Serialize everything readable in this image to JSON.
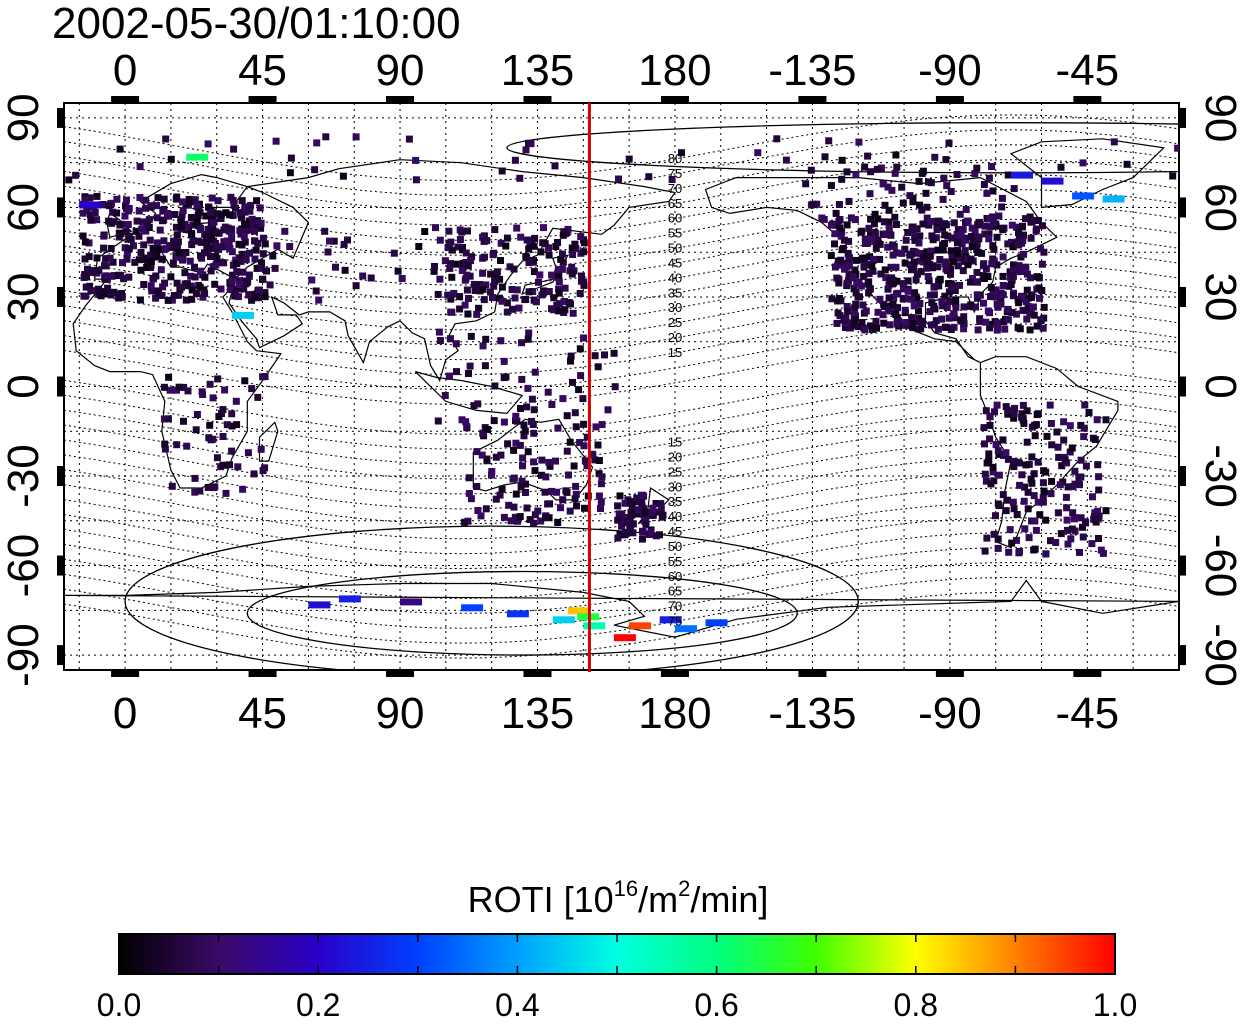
{
  "title": "2002-05-30/01:10:00",
  "map": {
    "lon_ticks_top": [
      "0",
      "45",
      "90",
      "135",
      "180",
      "-135",
      "-90",
      "-45"
    ],
    "lon_ticks_bottom": [
      "0",
      "45",
      "90",
      "135",
      "180",
      "-135",
      "-90",
      "-45"
    ],
    "lat_ticks": [
      "90",
      "60",
      "30",
      "0",
      "-30",
      "-60",
      "-90"
    ],
    "lon_range": [
      -20,
      345
    ],
    "lat_range": [
      -95,
      95
    ],
    "terminator_lon": 152,
    "terminator_color": "#d40000",
    "magnetic_contour_labels": [
      "80",
      "75",
      "70",
      "65",
      "60",
      "55",
      "50",
      "45",
      "40",
      "35",
      "30",
      "25",
      "20",
      "15",
      "15",
      "20",
      "25",
      "30",
      "35",
      "40",
      "45",
      "50",
      "55",
      "60",
      "65",
      "70",
      "75"
    ]
  },
  "colorbar": {
    "label_main": "ROTI  [10",
    "label_exp1": "16",
    "label_mid": "/m",
    "label_exp2": "2",
    "label_end": "/min]",
    "min": 0.0,
    "max": 1.0,
    "tick_labels": [
      "0.0",
      "0.2",
      "0.4",
      "0.6",
      "0.8",
      "1.0"
    ],
    "colormap": [
      "#000000",
      "#3a0a66",
      "#2a00c8",
      "#0040ff",
      "#00a0ff",
      "#00ffe0",
      "#00ff80",
      "#40ff00",
      "#ffff00",
      "#ff8000",
      "#ff0000"
    ]
  }
}
